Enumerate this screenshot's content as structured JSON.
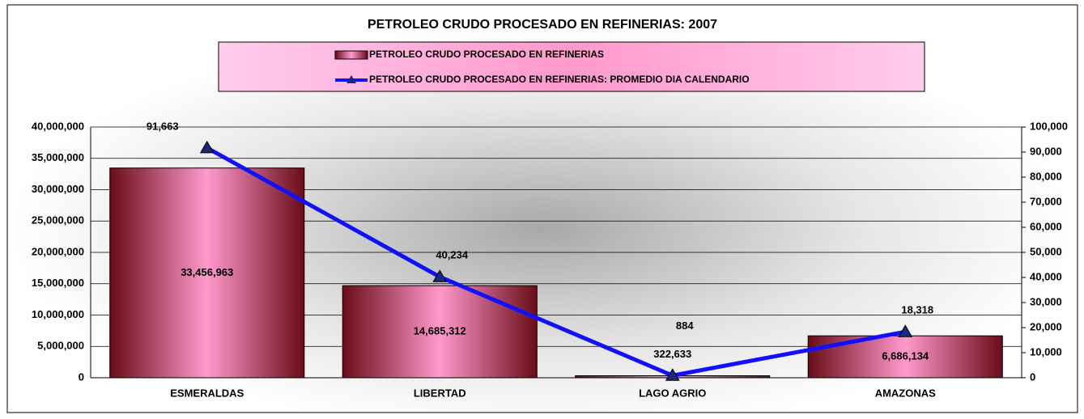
{
  "chart_data": {
    "type": "bar",
    "title": "PETROLEO CRUDO PROCESADO EN REFINERIAS:  2007",
    "categories": [
      "ESMERALDAS",
      "LIBERTAD",
      "LAGO AGRIO",
      "AMAZONAS"
    ],
    "series": [
      {
        "name": "PETROLEO CRUDO PROCESADO EN REFINERIAS",
        "type": "bar",
        "color": "#7a1020",
        "values": [
          33456963,
          14685312,
          322633,
          6686134
        ],
        "value_labels": [
          "33,456,963",
          "14,685,312",
          "322,633",
          "6,686,134"
        ]
      },
      {
        "name": "PETROLEO CRUDO PROCESADO EN REFINERIAS: PROMEDIO DIA CALENDARIO",
        "type": "line",
        "axis": "y2",
        "color": "#1010ff",
        "values": [
          91663,
          40234,
          884,
          18318
        ],
        "value_labels": [
          "91,663",
          "40,234",
          "884",
          "18,318"
        ]
      }
    ],
    "ylim": [
      0,
      40000000
    ],
    "yticks": [
      0,
      {
        "value": 5000000,
        "label": "5,000,000"
      },
      {
        "value": 10000000,
        "label": "10,000,000"
      },
      {
        "value": 15000000,
        "label": "15,000,000"
      },
      {
        "value": 20000000,
        "label": "20,000,000"
      },
      {
        "value": 25000000,
        "label": "25,000,000"
      },
      {
        "value": 30000000,
        "label": "30,000,000"
      },
      {
        "value": 35000000,
        "label": "35,000,000"
      },
      {
        "value": 40000000,
        "label": "40,000,000"
      }
    ],
    "y2lim": [
      0,
      100000
    ],
    "y2ticks": [
      0,
      {
        "value": 10000,
        "label": "10,000"
      },
      {
        "value": 20000,
        "label": "20,000"
      },
      {
        "value": 30000,
        "label": "30,000"
      },
      {
        "value": 40000,
        "label": "40,000"
      },
      {
        "value": 50000,
        "label": "50,000"
      },
      {
        "value": 60000,
        "label": "60,000"
      },
      {
        "value": 70000,
        "label": "70,000"
      },
      {
        "value": 80000,
        "label": "80,000"
      },
      {
        "value": 90000,
        "label": "90,000"
      },
      {
        "value": 100000,
        "label": "100,000"
      }
    ],
    "grid": true,
    "legend": "top"
  }
}
